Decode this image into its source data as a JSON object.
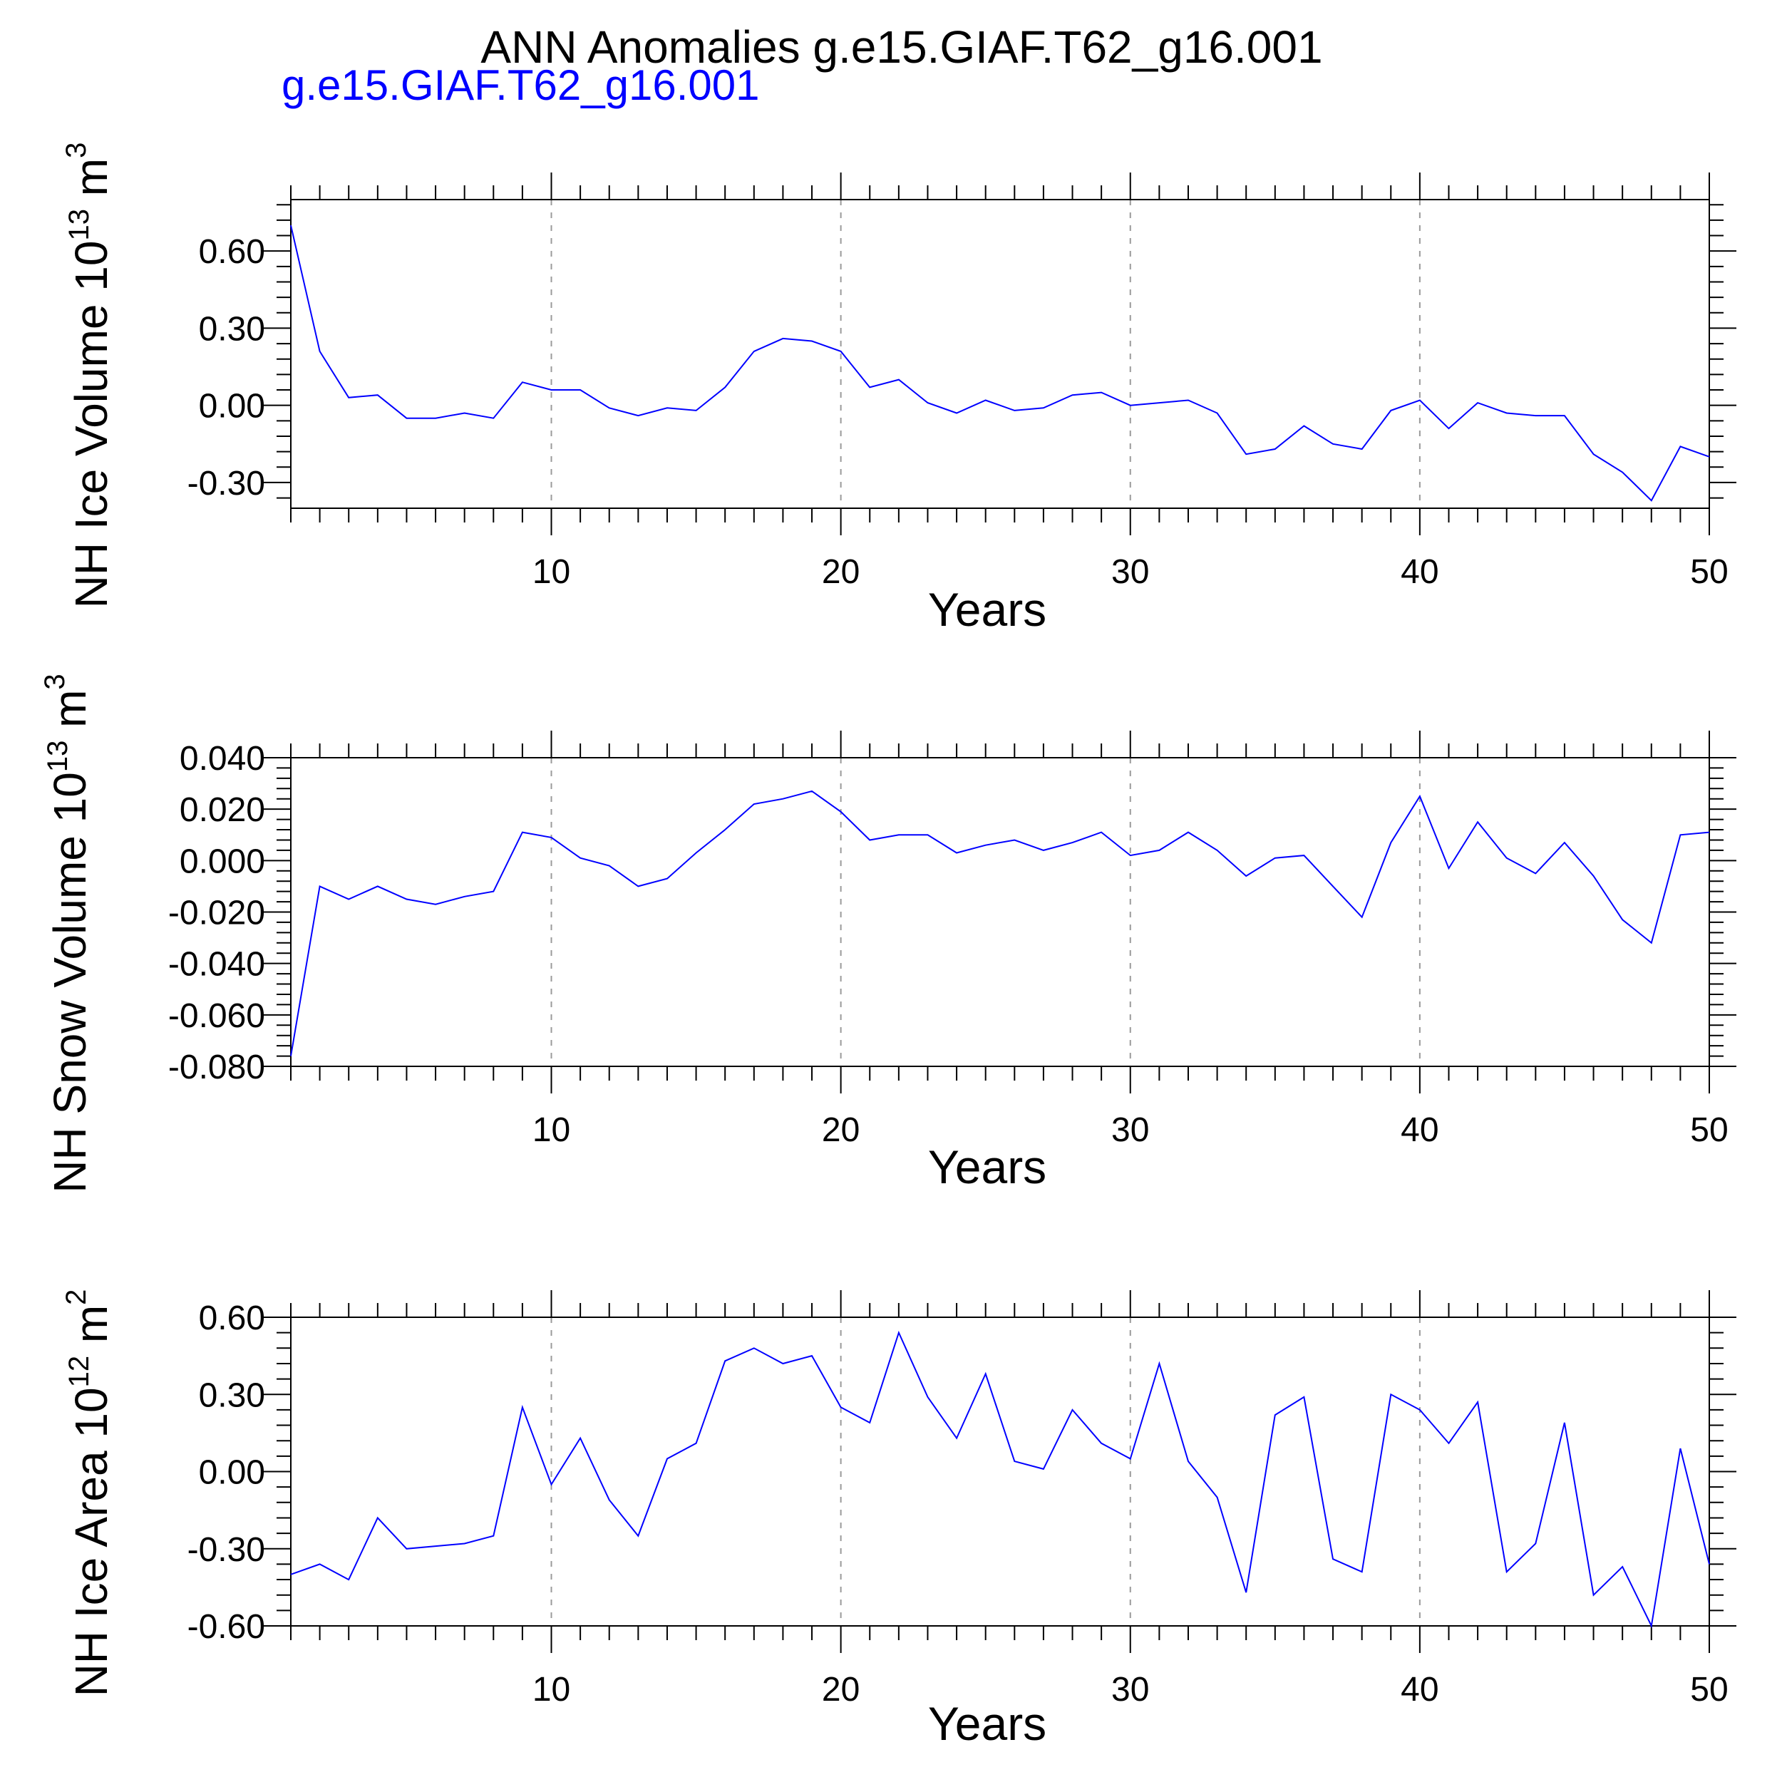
{
  "title": "ANN Anomalies g.e15.GIAF.T62_g16.001",
  "run_label": "g.e15.GIAF.T62_g16.001",
  "colors": {
    "series": "#0000ff",
    "text": "#000000",
    "run_label": "#0000ff",
    "grid": "#9a9a9a"
  },
  "chart_data": [
    {
      "type": "line",
      "ylabel": "NH Ice Volume 10",
      "ylabel_exp": "13",
      "ylabel_unit": "m",
      "ylabel_unit_exp": "3",
      "xlabel": "Years",
      "xlim": [
        1,
        50
      ],
      "ylim": [
        -0.4,
        0.8
      ],
      "yticks": [
        -0.3,
        0.0,
        0.3,
        0.6
      ],
      "ytick_labels": [
        "-0.30",
        "0.00",
        "0.30",
        "0.60"
      ],
      "xticks": [
        10,
        20,
        30,
        40,
        50
      ],
      "xtick_labels": [
        "10",
        "20",
        "30",
        "40",
        "50"
      ],
      "grid": "dashed vertical at major x ticks",
      "series": [
        {
          "x": [
            1,
            2,
            3,
            4,
            5,
            6,
            7,
            8,
            9,
            10,
            11,
            12,
            13,
            14,
            15,
            16,
            17,
            18,
            19,
            20,
            21,
            22,
            23,
            24,
            25,
            26,
            27,
            28,
            29,
            30,
            31,
            32,
            33,
            34,
            35,
            36,
            37,
            38,
            39,
            40,
            41,
            42,
            43,
            44,
            45,
            46,
            47,
            48,
            49,
            50
          ],
          "values": [
            0.7,
            0.21,
            0.03,
            0.04,
            -0.05,
            -0.05,
            -0.03,
            -0.05,
            0.09,
            0.06,
            0.06,
            -0.01,
            -0.04,
            -0.01,
            -0.02,
            0.07,
            0.21,
            0.26,
            0.25,
            0.21,
            0.07,
            0.1,
            0.01,
            -0.03,
            0.02,
            -0.02,
            -0.01,
            0.04,
            0.05,
            0.0,
            0.01,
            0.02,
            -0.03,
            -0.19,
            -0.17,
            -0.08,
            -0.15,
            -0.17,
            -0.02,
            0.02,
            -0.09,
            0.01,
            -0.03,
            -0.04,
            -0.04,
            -0.19,
            -0.26,
            -0.37,
            -0.16,
            -0.2
          ]
        }
      ]
    },
    {
      "type": "line",
      "ylabel": "NH Snow Volume 10",
      "ylabel_exp": "13",
      "ylabel_unit": "m",
      "ylabel_unit_exp": "3",
      "xlabel": "Years",
      "xlim": [
        1,
        50
      ],
      "ylim": [
        -0.08,
        0.04
      ],
      "yticks": [
        -0.08,
        -0.06,
        -0.04,
        -0.02,
        0.0,
        0.02,
        0.04
      ],
      "ytick_labels": [
        "-0.080",
        "-0.060",
        "-0.040",
        "-0.020",
        "0.000",
        "0.020",
        "0.040"
      ],
      "xticks": [
        10,
        20,
        30,
        40,
        50
      ],
      "xtick_labels": [
        "10",
        "20",
        "30",
        "40",
        "50"
      ],
      "grid": "dashed vertical at major x ticks",
      "series": [
        {
          "x": [
            1,
            2,
            3,
            4,
            5,
            6,
            7,
            8,
            9,
            10,
            11,
            12,
            13,
            14,
            15,
            16,
            17,
            18,
            19,
            20,
            21,
            22,
            23,
            24,
            25,
            26,
            27,
            28,
            29,
            30,
            31,
            32,
            33,
            34,
            35,
            36,
            37,
            38,
            39,
            40,
            41,
            42,
            43,
            44,
            45,
            46,
            47,
            48,
            49,
            50
          ],
          "values": [
            -0.076,
            -0.01,
            -0.015,
            -0.01,
            -0.015,
            -0.017,
            -0.014,
            -0.012,
            0.011,
            0.009,
            0.001,
            -0.002,
            -0.01,
            -0.007,
            0.003,
            0.012,
            0.022,
            0.024,
            0.027,
            0.019,
            0.008,
            0.01,
            0.01,
            0.003,
            0.006,
            0.008,
            0.004,
            0.007,
            0.011,
            0.002,
            0.004,
            0.011,
            0.004,
            -0.006,
            0.001,
            0.002,
            -0.01,
            -0.022,
            0.007,
            0.025,
            -0.003,
            0.015,
            0.001,
            -0.005,
            0.007,
            -0.006,
            -0.023,
            -0.032,
            0.01,
            0.011
          ]
        }
      ]
    },
    {
      "type": "line",
      "ylabel": "NH Ice Area 10",
      "ylabel_exp": "12",
      "ylabel_unit": "m",
      "ylabel_unit_exp": "2",
      "xlabel": "Years",
      "xlim": [
        1,
        50
      ],
      "ylim": [
        -0.6,
        0.6
      ],
      "yticks": [
        -0.6,
        -0.3,
        0.0,
        0.3,
        0.6
      ],
      "ytick_labels": [
        "-0.60",
        "-0.30",
        "0.00",
        "0.30",
        "0.60"
      ],
      "xticks": [
        10,
        20,
        30,
        40,
        50
      ],
      "xtick_labels": [
        "10",
        "20",
        "30",
        "40",
        "50"
      ],
      "grid": "dashed vertical at major x ticks",
      "series": [
        {
          "x": [
            1,
            2,
            3,
            4,
            5,
            6,
            7,
            8,
            9,
            10,
            11,
            12,
            13,
            14,
            15,
            16,
            17,
            18,
            19,
            20,
            21,
            22,
            23,
            24,
            25,
            26,
            27,
            28,
            29,
            30,
            31,
            32,
            33,
            34,
            35,
            36,
            37,
            38,
            39,
            40,
            41,
            42,
            43,
            44,
            45,
            46,
            47,
            48,
            49,
            50
          ],
          "values": [
            -0.4,
            -0.36,
            -0.42,
            -0.18,
            -0.3,
            -0.29,
            -0.28,
            -0.25,
            0.25,
            -0.05,
            0.13,
            -0.11,
            -0.25,
            0.05,
            0.11,
            0.43,
            0.48,
            0.42,
            0.45,
            0.25,
            0.19,
            0.54,
            0.29,
            0.13,
            0.38,
            0.04,
            0.01,
            0.24,
            0.11,
            0.05,
            0.42,
            0.04,
            -0.1,
            -0.47,
            0.22,
            0.29,
            -0.34,
            -0.39,
            0.3,
            0.24,
            0.11,
            0.27,
            -0.39,
            -0.28,
            0.19,
            -0.48,
            -0.37,
            -0.6,
            0.09,
            -0.36
          ]
        }
      ]
    }
  ]
}
